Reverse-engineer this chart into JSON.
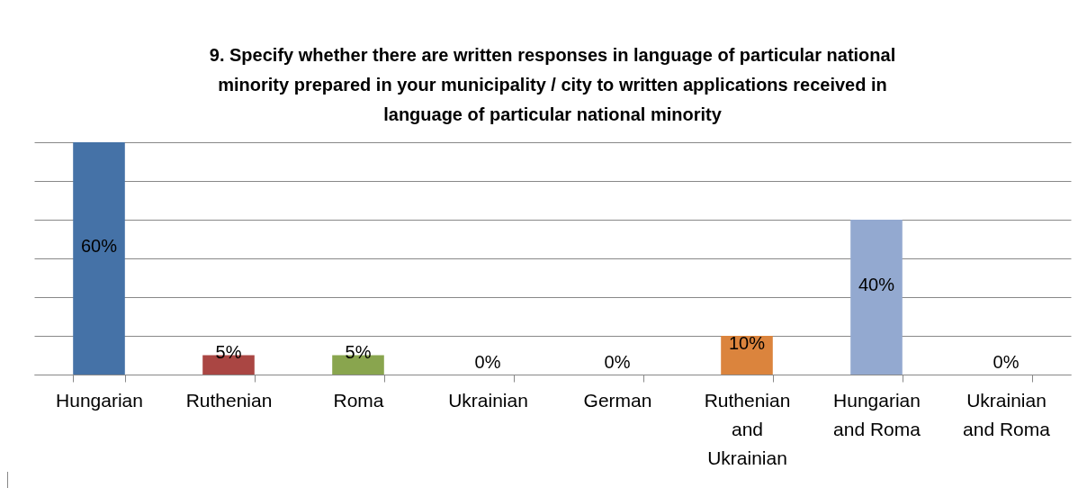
{
  "chart_data": {
    "type": "bar",
    "title": "9. Specify whether there are written responses in language of particular national minority prepared in your municipality / city to written applications received in language of particular national minority",
    "categories": [
      "Hungarian",
      "Ruthenian",
      "Roma",
      "Ukrainian",
      "German",
      "Ruthenian and Ukrainian",
      "Hungarian and Roma",
      "Ukrainian and Roma"
    ],
    "values": [
      60,
      5,
      5,
      0,
      0,
      10,
      40,
      0
    ],
    "colors": [
      "#4572a7",
      "#aa4643",
      "#89a54e",
      "#71588f",
      "#4198af",
      "#db843d",
      "#93a9d0",
      "#a47d7c"
    ],
    "value_labels": [
      "60%",
      "5%",
      "5%",
      "0%",
      "0%",
      "10%",
      "40%",
      "0%"
    ],
    "ylim": [
      0,
      60
    ],
    "yticks": [
      0,
      10,
      20,
      30,
      40,
      50,
      60
    ],
    "tick_labels": "x",
    "grid": "y"
  }
}
